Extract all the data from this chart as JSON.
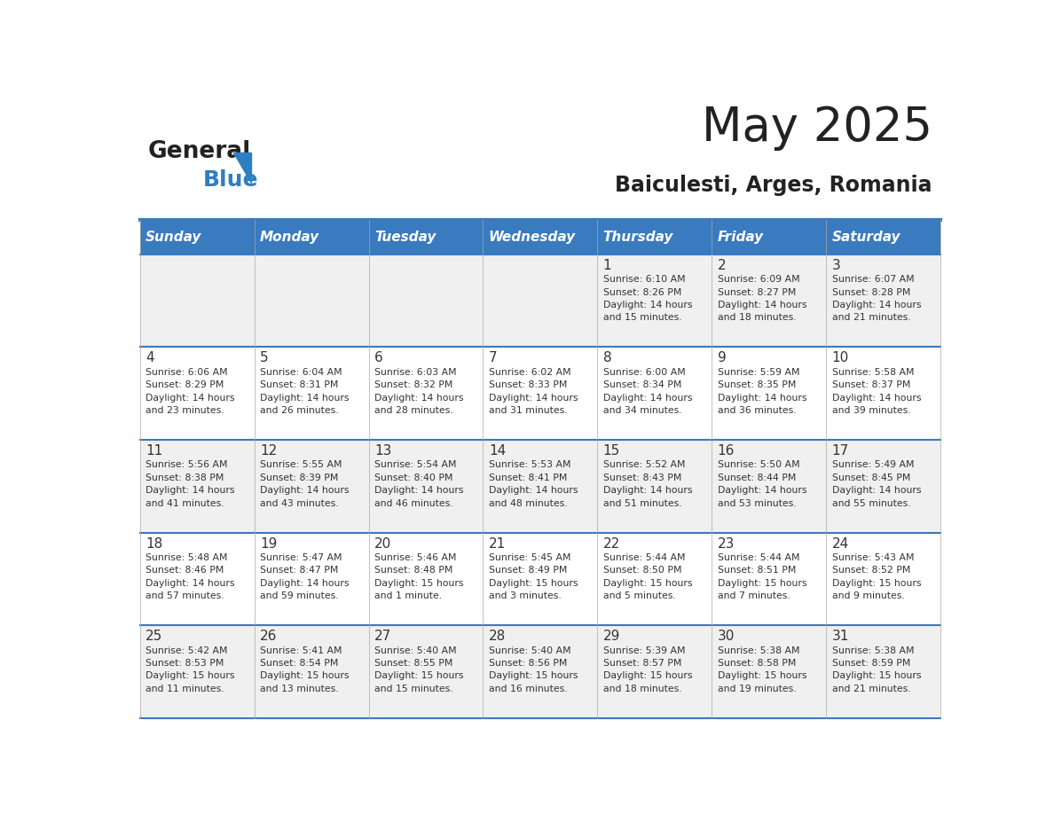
{
  "title": "May 2025",
  "subtitle": "Baiculesti, Arges, Romania",
  "days_of_week": [
    "Sunday",
    "Monday",
    "Tuesday",
    "Wednesday",
    "Thursday",
    "Friday",
    "Saturday"
  ],
  "header_bg": "#3a7abf",
  "header_text": "#ffffff",
  "row_bg_odd": "#f0f0f0",
  "row_bg_even": "#ffffff",
  "cell_border": "#3a7abf",
  "cell_border_light": "#aaaaaa",
  "day_number_color": "#333333",
  "info_text_color": "#333333",
  "title_color": "#222222",
  "subtitle_color": "#222222",
  "logo_general_color": "#222222",
  "logo_blue_color": "#2e7fc1",
  "weeks": [
    {
      "days": [
        {
          "date": "",
          "info": ""
        },
        {
          "date": "",
          "info": ""
        },
        {
          "date": "",
          "info": ""
        },
        {
          "date": "",
          "info": ""
        },
        {
          "date": "1",
          "info": "Sunrise: 6:10 AM\nSunset: 8:26 PM\nDaylight: 14 hours\nand 15 minutes."
        },
        {
          "date": "2",
          "info": "Sunrise: 6:09 AM\nSunset: 8:27 PM\nDaylight: 14 hours\nand 18 minutes."
        },
        {
          "date": "3",
          "info": "Sunrise: 6:07 AM\nSunset: 8:28 PM\nDaylight: 14 hours\nand 21 minutes."
        }
      ]
    },
    {
      "days": [
        {
          "date": "4",
          "info": "Sunrise: 6:06 AM\nSunset: 8:29 PM\nDaylight: 14 hours\nand 23 minutes."
        },
        {
          "date": "5",
          "info": "Sunrise: 6:04 AM\nSunset: 8:31 PM\nDaylight: 14 hours\nand 26 minutes."
        },
        {
          "date": "6",
          "info": "Sunrise: 6:03 AM\nSunset: 8:32 PM\nDaylight: 14 hours\nand 28 minutes."
        },
        {
          "date": "7",
          "info": "Sunrise: 6:02 AM\nSunset: 8:33 PM\nDaylight: 14 hours\nand 31 minutes."
        },
        {
          "date": "8",
          "info": "Sunrise: 6:00 AM\nSunset: 8:34 PM\nDaylight: 14 hours\nand 34 minutes."
        },
        {
          "date": "9",
          "info": "Sunrise: 5:59 AM\nSunset: 8:35 PM\nDaylight: 14 hours\nand 36 minutes."
        },
        {
          "date": "10",
          "info": "Sunrise: 5:58 AM\nSunset: 8:37 PM\nDaylight: 14 hours\nand 39 minutes."
        }
      ]
    },
    {
      "days": [
        {
          "date": "11",
          "info": "Sunrise: 5:56 AM\nSunset: 8:38 PM\nDaylight: 14 hours\nand 41 minutes."
        },
        {
          "date": "12",
          "info": "Sunrise: 5:55 AM\nSunset: 8:39 PM\nDaylight: 14 hours\nand 43 minutes."
        },
        {
          "date": "13",
          "info": "Sunrise: 5:54 AM\nSunset: 8:40 PM\nDaylight: 14 hours\nand 46 minutes."
        },
        {
          "date": "14",
          "info": "Sunrise: 5:53 AM\nSunset: 8:41 PM\nDaylight: 14 hours\nand 48 minutes."
        },
        {
          "date": "15",
          "info": "Sunrise: 5:52 AM\nSunset: 8:43 PM\nDaylight: 14 hours\nand 51 minutes."
        },
        {
          "date": "16",
          "info": "Sunrise: 5:50 AM\nSunset: 8:44 PM\nDaylight: 14 hours\nand 53 minutes."
        },
        {
          "date": "17",
          "info": "Sunrise: 5:49 AM\nSunset: 8:45 PM\nDaylight: 14 hours\nand 55 minutes."
        }
      ]
    },
    {
      "days": [
        {
          "date": "18",
          "info": "Sunrise: 5:48 AM\nSunset: 8:46 PM\nDaylight: 14 hours\nand 57 minutes."
        },
        {
          "date": "19",
          "info": "Sunrise: 5:47 AM\nSunset: 8:47 PM\nDaylight: 14 hours\nand 59 minutes."
        },
        {
          "date": "20",
          "info": "Sunrise: 5:46 AM\nSunset: 8:48 PM\nDaylight: 15 hours\nand 1 minute."
        },
        {
          "date": "21",
          "info": "Sunrise: 5:45 AM\nSunset: 8:49 PM\nDaylight: 15 hours\nand 3 minutes."
        },
        {
          "date": "22",
          "info": "Sunrise: 5:44 AM\nSunset: 8:50 PM\nDaylight: 15 hours\nand 5 minutes."
        },
        {
          "date": "23",
          "info": "Sunrise: 5:44 AM\nSunset: 8:51 PM\nDaylight: 15 hours\nand 7 minutes."
        },
        {
          "date": "24",
          "info": "Sunrise: 5:43 AM\nSunset: 8:52 PM\nDaylight: 15 hours\nand 9 minutes."
        }
      ]
    },
    {
      "days": [
        {
          "date": "25",
          "info": "Sunrise: 5:42 AM\nSunset: 8:53 PM\nDaylight: 15 hours\nand 11 minutes."
        },
        {
          "date": "26",
          "info": "Sunrise: 5:41 AM\nSunset: 8:54 PM\nDaylight: 15 hours\nand 13 minutes."
        },
        {
          "date": "27",
          "info": "Sunrise: 5:40 AM\nSunset: 8:55 PM\nDaylight: 15 hours\nand 15 minutes."
        },
        {
          "date": "28",
          "info": "Sunrise: 5:40 AM\nSunset: 8:56 PM\nDaylight: 15 hours\nand 16 minutes."
        },
        {
          "date": "29",
          "info": "Sunrise: 5:39 AM\nSunset: 8:57 PM\nDaylight: 15 hours\nand 18 minutes."
        },
        {
          "date": "30",
          "info": "Sunrise: 5:38 AM\nSunset: 8:58 PM\nDaylight: 15 hours\nand 19 minutes."
        },
        {
          "date": "31",
          "info": "Sunrise: 5:38 AM\nSunset: 8:59 PM\nDaylight: 15 hours\nand 21 minutes."
        }
      ]
    }
  ]
}
